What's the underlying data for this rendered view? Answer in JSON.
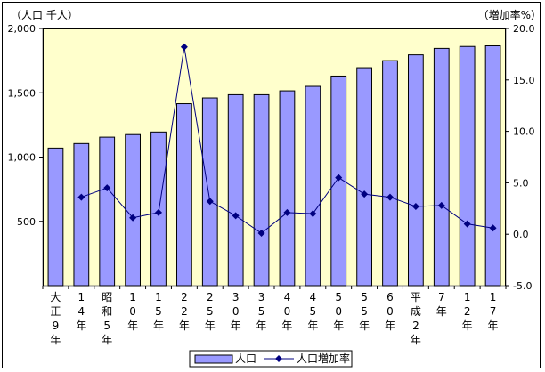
{
  "chart_data": {
    "type": "bar",
    "left_axis_label": "（人口 千人）",
    "right_axis_label": "（増加率%）",
    "categories": [
      [
        "大",
        "正",
        "9",
        "年"
      ],
      [
        "1",
        "4",
        "年"
      ],
      [
        "昭",
        "和",
        "5",
        "年"
      ],
      [
        "1",
        "0",
        "年"
      ],
      [
        "1",
        "5",
        "年"
      ],
      [
        "2",
        "2",
        "年"
      ],
      [
        "2",
        "5",
        "年"
      ],
      [
        "3",
        "0",
        "年"
      ],
      [
        "3",
        "5",
        "年"
      ],
      [
        "4",
        "0",
        "年"
      ],
      [
        "4",
        "5",
        "年"
      ],
      [
        "5",
        "0",
        "年"
      ],
      [
        "5",
        "5",
        "年"
      ],
      [
        "6",
        "0",
        "年"
      ],
      [
        "平",
        "成",
        "2",
        "年"
      ],
      [
        "7",
        "年"
      ],
      [
        "1",
        "2",
        "年"
      ],
      [
        "1",
        "7",
        "年"
      ]
    ],
    "series": [
      {
        "name": "人口",
        "type": "bar",
        "axis": "left",
        "color": "#9999ff",
        "values": [
          1070,
          1105,
          1155,
          1175,
          1195,
          1415,
          1460,
          1485,
          1485,
          1515,
          1550,
          1630,
          1695,
          1750,
          1795,
          1845,
          1860,
          1865
        ]
      },
      {
        "name": "人口増加率",
        "type": "line",
        "axis": "right",
        "color": "#000080",
        "values": [
          null,
          3.6,
          4.5,
          1.6,
          2.1,
          18.2,
          3.2,
          1.8,
          0.1,
          2.1,
          2.0,
          5.5,
          3.9,
          3.6,
          2.7,
          2.8,
          1.0,
          0.6
        ]
      }
    ],
    "left_axis": {
      "min": 0,
      "max": 2000,
      "ticks": [
        "500",
        "1,000",
        "1,500",
        "2,000"
      ],
      "tick_values": [
        500,
        1000,
        1500,
        2000
      ]
    },
    "right_axis": {
      "min": -5,
      "max": 20,
      "ticks": [
        "-5.0",
        "0.0",
        "5.0",
        "10.0",
        "15.0",
        "20.0"
      ],
      "tick_values": [
        -5,
        0,
        5,
        10,
        15,
        20
      ]
    },
    "plot_background": "#ffffcc",
    "gridlines": true,
    "legend_position": "bottom"
  }
}
